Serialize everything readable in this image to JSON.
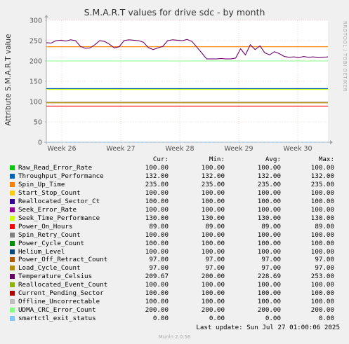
{
  "chart_data": {
    "type": "line",
    "title": "S.M.A.R.T values for drive sdc - by month",
    "ylabel": "Attribute S.M.A.R.T value",
    "xlabel": "",
    "ylim": [
      0,
      300
    ],
    "yticks": [
      "0",
      "50",
      "100",
      "150",
      "200",
      "250",
      "300"
    ],
    "xticks": [
      "Week 26",
      "Week 27",
      "Week 28",
      "Week 29",
      "Week 30"
    ],
    "grid": true,
    "series": [
      {
        "name": "Raw_Read_Error_Rate",
        "color": "#00cc00",
        "values": [
          100,
          100
        ]
      },
      {
        "name": "Throughput_Performance",
        "color": "#0066b3",
        "values": [
          132,
          132
        ]
      },
      {
        "name": "Spin_Up_Time",
        "color": "#ff8000",
        "values": [
          235,
          235
        ]
      },
      {
        "name": "Start_Stop_Count",
        "color": "#ffcc00",
        "values": [
          100,
          100
        ]
      },
      {
        "name": "Reallocated_Sector_Ct",
        "color": "#330099",
        "values": [
          100,
          100
        ]
      },
      {
        "name": "Seek_Error_Rate",
        "color": "#990099",
        "values": [
          100,
          100
        ]
      },
      {
        "name": "Seek_Time_Performance",
        "color": "#ccff00",
        "values": [
          130,
          130
        ]
      },
      {
        "name": "Power_On_Hours",
        "color": "#ff0000",
        "values": [
          89,
          89
        ]
      },
      {
        "name": "Spin_Retry_Count",
        "color": "#808080",
        "values": [
          100,
          100
        ]
      },
      {
        "name": "Power_Cycle_Count",
        "color": "#008f00",
        "values": [
          100,
          100
        ]
      },
      {
        "name": "Helium_Level",
        "color": "#00487d",
        "values": [
          100,
          100
        ]
      },
      {
        "name": "Power_Off_Retract_Count",
        "color": "#b35a00",
        "values": [
          97,
          97
        ]
      },
      {
        "name": "Load_Cycle_Count",
        "color": "#b38f00",
        "values": [
          97,
          97
        ]
      },
      {
        "name": "Temperature_Celsius",
        "color": "#6b006b",
        "values": [
          245,
          244,
          250,
          251,
          249,
          252,
          250,
          236,
          231,
          232,
          240,
          250,
          248,
          241,
          232,
          235,
          250,
          252,
          251,
          250,
          246,
          233,
          228,
          232,
          236,
          250,
          252,
          251,
          250,
          253,
          248,
          234,
          220,
          205,
          205,
          205,
          206,
          205,
          205,
          207,
          230,
          215,
          240,
          228,
          237,
          220,
          215,
          223,
          218,
          211,
          209,
          210,
          208,
          211,
          209,
          210,
          208,
          209,
          210
        ]
      },
      {
        "name": "Reallocated_Event_Count",
        "color": "#8fb300",
        "values": [
          100,
          100
        ]
      },
      {
        "name": "Current_Pending_Sector",
        "color": "#b30000",
        "values": [
          100,
          100
        ]
      },
      {
        "name": "Offline_Uncorrectable",
        "color": "#bebebe",
        "values": [
          100,
          100
        ]
      },
      {
        "name": "UDMA_CRC_Error_Count",
        "color": "#80ff80",
        "values": [
          200,
          200
        ]
      },
      {
        "name": "smartctl_exit_status",
        "color": "#80c9ff",
        "values": [
          0,
          0
        ]
      }
    ]
  },
  "side_text": "RRDTOOL / TOBI OETIKER",
  "legend": {
    "headers": [
      "Cur:",
      "Min:",
      "Avg:",
      "Max:"
    ],
    "rows": [
      {
        "name": "Raw_Read_Error_Rate",
        "color": "#00cc00",
        "cur": "100.00",
        "min": "100.00",
        "avg": "100.00",
        "max": "100.00"
      },
      {
        "name": "Throughput_Performance",
        "color": "#0066b3",
        "cur": "132.00",
        "min": "132.00",
        "avg": "132.00",
        "max": "132.00"
      },
      {
        "name": "Spin_Up_Time",
        "color": "#ff8000",
        "cur": "235.00",
        "min": "235.00",
        "avg": "235.00",
        "max": "235.00"
      },
      {
        "name": "Start_Stop_Count",
        "color": "#ffcc00",
        "cur": "100.00",
        "min": "100.00",
        "avg": "100.00",
        "max": "100.00"
      },
      {
        "name": "Reallocated_Sector_Ct",
        "color": "#330099",
        "cur": "100.00",
        "min": "100.00",
        "avg": "100.00",
        "max": "100.00"
      },
      {
        "name": "Seek_Error_Rate",
        "color": "#990099",
        "cur": "100.00",
        "min": "100.00",
        "avg": "100.00",
        "max": "100.00"
      },
      {
        "name": "Seek_Time_Performance",
        "color": "#ccff00",
        "cur": "130.00",
        "min": "130.00",
        "avg": "130.00",
        "max": "130.00"
      },
      {
        "name": "Power_On_Hours",
        "color": "#ff0000",
        "cur": "89.00",
        "min": "89.00",
        "avg": "89.00",
        "max": "89.00"
      },
      {
        "name": "Spin_Retry_Count",
        "color": "#808080",
        "cur": "100.00",
        "min": "100.00",
        "avg": "100.00",
        "max": "100.00"
      },
      {
        "name": "Power_Cycle_Count",
        "color": "#008f00",
        "cur": "100.00",
        "min": "100.00",
        "avg": "100.00",
        "max": "100.00"
      },
      {
        "name": "Helium_Level",
        "color": "#00487d",
        "cur": "100.00",
        "min": "100.00",
        "avg": "100.00",
        "max": "100.00"
      },
      {
        "name": "Power_Off_Retract_Count",
        "color": "#b35a00",
        "cur": "97.00",
        "min": "97.00",
        "avg": "97.00",
        "max": "97.00"
      },
      {
        "name": "Load_Cycle_Count",
        "color": "#b38f00",
        "cur": "97.00",
        "min": "97.00",
        "avg": "97.00",
        "max": "97.00"
      },
      {
        "name": "Temperature_Celsius",
        "color": "#6b006b",
        "cur": "209.67",
        "min": "200.00",
        "avg": "228.69",
        "max": "253.00"
      },
      {
        "name": "Reallocated_Event_Count",
        "color": "#8fb300",
        "cur": "100.00",
        "min": "100.00",
        "avg": "100.00",
        "max": "100.00"
      },
      {
        "name": "Current_Pending_Sector",
        "color": "#b30000",
        "cur": "100.00",
        "min": "100.00",
        "avg": "100.00",
        "max": "100.00"
      },
      {
        "name": "Offline_Uncorrectable",
        "color": "#bebebe",
        "cur": "100.00",
        "min": "100.00",
        "avg": "100.00",
        "max": "100.00"
      },
      {
        "name": "UDMA_CRC_Error_Count",
        "color": "#80ff80",
        "cur": "200.00",
        "min": "200.00",
        "avg": "200.00",
        "max": "200.00"
      },
      {
        "name": "smartctl_exit_status",
        "color": "#80c9ff",
        "cur": "0.00",
        "min": "0.00",
        "avg": "0.00",
        "max": "0.00"
      }
    ]
  },
  "footer": "Last update: Sun Jul 27 01:00:06 2025",
  "version": "Munin 2.0.56"
}
